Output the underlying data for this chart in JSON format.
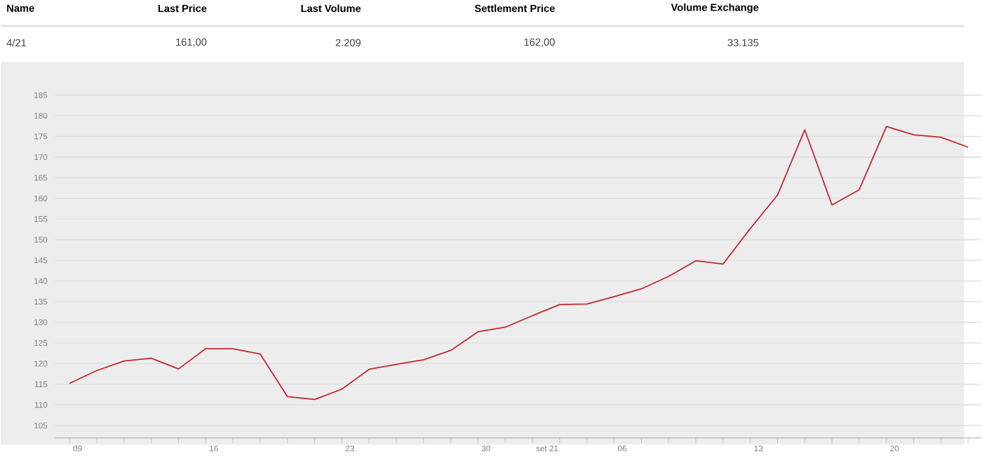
{
  "chart_data": {
    "type": "line",
    "annotations": [
      "Name",
      "Last Price",
      "Last Volume",
      "Settlement Price",
      "Volume Exchange",
      "4/21",
      "161,00",
      "2.209",
      "162,00",
      "33.135"
    ],
    "categories": [
      "09",
      null,
      null,
      null,
      null,
      "16",
      null,
      null,
      null,
      null,
      "23",
      null,
      null,
      null,
      null,
      "30",
      null,
      "set 21",
      null,
      null,
      "06",
      null,
      null,
      null,
      null,
      "13",
      null,
      null,
      null,
      null,
      "20",
      null,
      null,
      null
    ],
    "series": [
      {
        "color": "#c0272d",
        "values": [
          115.2,
          118.3,
          120.6,
          121.3,
          118.7,
          123.6,
          123.6,
          122.3,
          112.0,
          111.3,
          113.8,
          118.6,
          119.8,
          120.9,
          123.2,
          127.7,
          128.8,
          131.6,
          134.3,
          134.4,
          136.2,
          138.1,
          141.1,
          144.9,
          144.1,
          152.7,
          160.8,
          176.6,
          158.4,
          162.1,
          177.4,
          175.4,
          174.8,
          172.4
        ]
      }
    ],
    "ylim": [
      102,
      185
    ],
    "yticks": [
      105,
      110,
      115,
      120,
      125,
      130,
      135,
      140,
      145,
      150,
      155,
      160,
      165,
      170,
      175,
      180,
      185
    ],
    "grid": "y",
    "marker": "none",
    "line_style": "solid"
  }
}
